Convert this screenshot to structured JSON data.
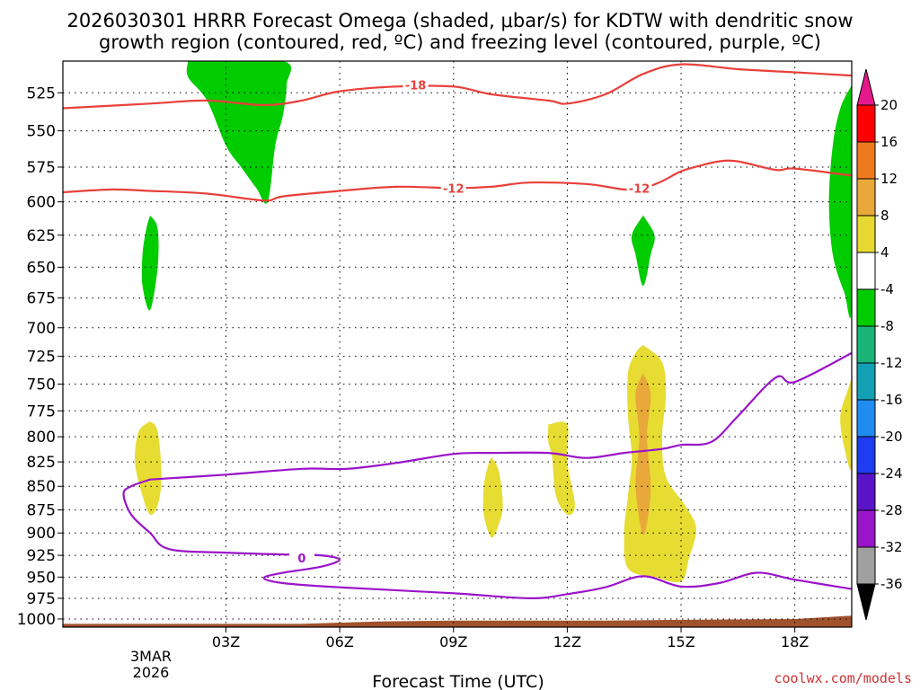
{
  "title_line1": "2026030301 HRRR Forecast Omega (shaded, μbar/s) for KDTW with dendritic snow",
  "title_line2": "growth region (contoured, red, ºC) and freezing level (contoured, purple, ºC)",
  "xlabel": "Forecast Time (UTC)",
  "credit": "coolwx.com/models",
  "date_label": [
    "3MAR",
    "2026"
  ],
  "colors": {
    "green": "#00cc00",
    "yellow": "#e6dc32",
    "orange": "#e6a032",
    "red_contour": "#e8403a",
    "purple_contour": "#9a14c8",
    "ground": "#a0522d"
  },
  "chart_data": {
    "type": "contour-crosssection",
    "x_unit": "forecast hour since 00Z 3MAR2026",
    "xlim": [
      -1.3,
      19.5
    ],
    "y_unit": "hPa",
    "ylim": [
      505,
      1010
    ],
    "y_scale": "log-pressure",
    "grid": true,
    "x_ticks": [
      {
        "x": 3,
        "label": "03Z"
      },
      {
        "x": 6,
        "label": "06Z"
      },
      {
        "x": 9,
        "label": "09Z"
      },
      {
        "x": 12,
        "label": "12Z"
      },
      {
        "x": 15,
        "label": "15Z"
      },
      {
        "x": 18,
        "label": "18Z"
      }
    ],
    "y_ticks": [
      525,
      550,
      575,
      600,
      625,
      650,
      675,
      700,
      725,
      750,
      775,
      800,
      825,
      850,
      875,
      900,
      925,
      950,
      975,
      1000
    ],
    "colorbar": {
      "labels": [
        "20",
        "16",
        "12",
        "8",
        "4",
        "-4",
        "-8",
        "-12",
        "-16",
        "-20",
        "-24",
        "-28",
        "-32",
        "-36"
      ],
      "colors": [
        "#ff0000",
        "#ee7a1e",
        "#e8a83a",
        "#e8d832",
        "#ffffff",
        "#00cc00",
        "#1ab478",
        "#14a0b4",
        "#1e8cf0",
        "#1e3cf0",
        "#5a14c8",
        "#9a14c8",
        "#a0a0a0"
      ],
      "top_arrow": "#e6198c",
      "bottom_arrow": "#000000"
    },
    "series": [
      {
        "name": "-18",
        "kind": "contour",
        "color": "#e8403a",
        "label_at": [
          8,
          520
        ],
        "points": [
          [
            -1.3,
            535
          ],
          [
            1,
            532
          ],
          [
            2.5,
            530
          ],
          [
            4,
            533
          ],
          [
            5,
            530
          ],
          [
            6,
            524
          ],
          [
            7.5,
            521
          ],
          [
            9,
            521
          ],
          [
            10,
            526
          ],
          [
            11.5,
            530
          ],
          [
            12,
            532
          ],
          [
            13,
            526
          ],
          [
            14,
            513
          ],
          [
            15,
            507
          ],
          [
            16.5,
            510
          ],
          [
            18,
            512
          ],
          [
            19.5,
            514
          ]
        ]
      },
      {
        "name": "-12",
        "kind": "contour",
        "color": "#e8403a",
        "label_at": [
          9,
          590
        ],
        "points": [
          [
            -1.3,
            593
          ],
          [
            0,
            591
          ],
          [
            1,
            592
          ],
          [
            2.5,
            594
          ],
          [
            4,
            599
          ],
          [
            4.5,
            596
          ],
          [
            6,
            592
          ],
          [
            7.5,
            589
          ],
          [
            9,
            590
          ],
          [
            10,
            589
          ],
          [
            11,
            586
          ],
          [
            12.5,
            587
          ],
          [
            13.5,
            591
          ],
          [
            14,
            590
          ],
          [
            14.5,
            585
          ],
          [
            15,
            578
          ],
          [
            15.5,
            574
          ],
          [
            16,
            571
          ],
          [
            16.5,
            571
          ],
          [
            17.5,
            577
          ],
          [
            18,
            576
          ],
          [
            19.5,
            581
          ]
        ],
        "extra_label_at": [
          13.9,
          590
        ]
      },
      {
        "name": "0",
        "kind": "contour",
        "color": "#9a14c8",
        "label_at": [
          5,
          928
        ],
        "points": [
          [
            1,
            843
          ],
          [
            3,
            838
          ],
          [
            5,
            832
          ],
          [
            6.2,
            832
          ],
          [
            7.5,
            826
          ],
          [
            9,
            817
          ],
          [
            10,
            816
          ],
          [
            11.5,
            816
          ],
          [
            12.5,
            821
          ],
          [
            13.5,
            816
          ],
          [
            14.5,
            812
          ],
          [
            15,
            808
          ],
          [
            15.8,
            805
          ],
          [
            16.5,
            780
          ],
          [
            17.5,
            744
          ],
          [
            18,
            748
          ],
          [
            19.5,
            722
          ]
        ],
        "lower_branch": [
          [
            1,
            843
          ],
          [
            0.5,
            850
          ],
          [
            0.3,
            858
          ],
          [
            0.5,
            880
          ],
          [
            1,
            900
          ],
          [
            1.5,
            918
          ],
          [
            3,
            922
          ],
          [
            4.5,
            924
          ],
          [
            5.5,
            925
          ],
          [
            6,
            930
          ],
          [
            5.5,
            938
          ],
          [
            4.5,
            945
          ],
          [
            4,
            951
          ],
          [
            4.5,
            957
          ],
          [
            6,
            962
          ],
          [
            9,
            969
          ],
          [
            11,
            975
          ],
          [
            12,
            970
          ],
          [
            13,
            962
          ],
          [
            14,
            949
          ],
          [
            15,
            961
          ],
          [
            16,
            957
          ],
          [
            17,
            945
          ],
          [
            18,
            953
          ],
          [
            19.5,
            964
          ]
        ]
      }
    ],
    "shaded_regions": [
      {
        "value": "-8",
        "color": "#00cc00",
        "points": [
          [
            2,
            505
          ],
          [
            4.5,
            505
          ],
          [
            4.6,
            520
          ],
          [
            4.5,
            540
          ],
          [
            4.3,
            560
          ],
          [
            4.1,
            600
          ],
          [
            3.8,
            590
          ],
          [
            3.4,
            575
          ],
          [
            3,
            560
          ],
          [
            2.5,
            530
          ],
          [
            2,
            515
          ]
        ]
      },
      {
        "value": "-8",
        "color": "#00cc00",
        "points": [
          [
            1,
            610
          ],
          [
            1.2,
            620
          ],
          [
            1.2,
            650
          ],
          [
            1.0,
            685
          ],
          [
            0.8,
            665
          ],
          [
            0.8,
            640
          ],
          [
            0.9,
            620
          ]
        ]
      },
      {
        "value": "-8",
        "color": "#00cc00",
        "points": [
          [
            14,
            610
          ],
          [
            14.3,
            625
          ],
          [
            14.2,
            640
          ],
          [
            14,
            665
          ],
          [
            13.8,
            640
          ],
          [
            13.7,
            625
          ]
        ]
      },
      {
        "value": "-8",
        "color": "#00cc00",
        "points": [
          [
            19.5,
            520
          ],
          [
            19.5,
            680
          ],
          [
            19.3,
            670
          ],
          [
            19,
            640
          ],
          [
            18.9,
            600
          ],
          [
            19,
            560
          ],
          [
            19.2,
            535
          ]
        ]
      },
      {
        "value": "4",
        "color": "#e6dc32",
        "points": [
          [
            1,
            785
          ],
          [
            1.2,
            795
          ],
          [
            1.3,
            840
          ],
          [
            1.2,
            870
          ],
          [
            1.0,
            880
          ],
          [
            0.8,
            860
          ],
          [
            0.6,
            825
          ],
          [
            0.7,
            795
          ]
        ]
      },
      {
        "value": "4",
        "color": "#e6dc32",
        "points": [
          [
            10,
            820
          ],
          [
            10.2,
            835
          ],
          [
            10.3,
            870
          ],
          [
            10.2,
            890
          ],
          [
            10,
            905
          ],
          [
            9.8,
            880
          ],
          [
            9.8,
            850
          ],
          [
            9.9,
            830
          ]
        ]
      },
      {
        "value": "4",
        "color": "#e6dc32",
        "points": [
          [
            11.5,
            788
          ],
          [
            12,
            788
          ],
          [
            12,
            825
          ],
          [
            12.2,
            870
          ],
          [
            12.0,
            880
          ],
          [
            11.7,
            860
          ],
          [
            11.6,
            820
          ],
          [
            11.5,
            805
          ]
        ]
      },
      {
        "value": "4",
        "color": "#e6dc32",
        "points": [
          [
            14,
            715
          ],
          [
            14.5,
            730
          ],
          [
            14.6,
            760
          ],
          [
            14.5,
            800
          ],
          [
            14.6,
            840
          ],
          [
            15.1,
            870
          ],
          [
            15.4,
            895
          ],
          [
            15.2,
            930
          ],
          [
            15,
            955
          ],
          [
            14.3,
            950
          ],
          [
            13.6,
            940
          ],
          [
            13.5,
            900
          ],
          [
            13.6,
            860
          ],
          [
            13.7,
            820
          ],
          [
            13.6,
            780
          ],
          [
            13.6,
            740
          ],
          [
            13.8,
            722
          ]
        ]
      },
      {
        "value": "8",
        "color": "#e8a83a",
        "points": [
          [
            14,
            740
          ],
          [
            14.2,
            760
          ],
          [
            14.1,
            800
          ],
          [
            14.2,
            850
          ],
          [
            14.1,
            890
          ],
          [
            14,
            902
          ],
          [
            13.9,
            885
          ],
          [
            13.8,
            845
          ],
          [
            13.9,
            800
          ],
          [
            13.8,
            760
          ]
        ]
      },
      {
        "value": "4",
        "color": "#e6dc32",
        "points": [
          [
            19.5,
            745
          ],
          [
            19.5,
            830
          ],
          [
            19.3,
            810
          ],
          [
            19.2,
            780
          ],
          [
            19.4,
            755
          ]
        ]
      }
    ],
    "ground": {
      "color": "#a0522d",
      "points": [
        [
          -1.3,
          1006
        ],
        [
          5,
          1006
        ],
        [
          7,
          1003
        ],
        [
          9,
          1002
        ],
        [
          13,
          1002
        ],
        [
          15,
          1001
        ],
        [
          18,
          1000
        ],
        [
          19.5,
          996
        ]
      ]
    }
  }
}
